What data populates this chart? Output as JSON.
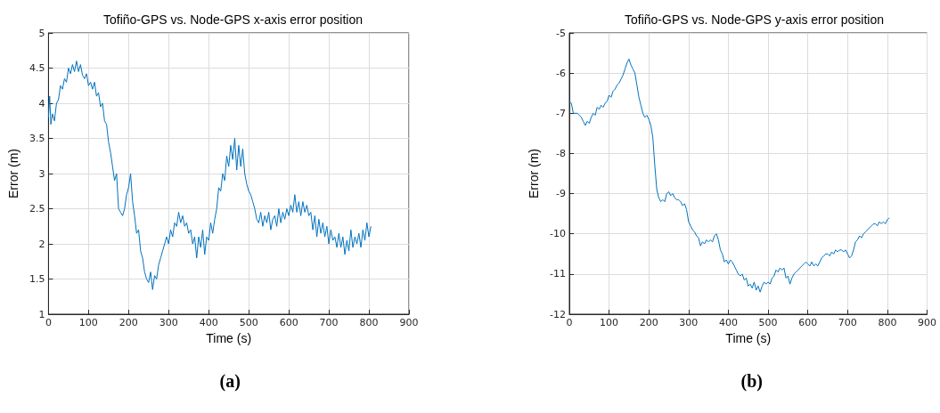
{
  "chart_data": [
    {
      "type": "line",
      "title": "Tofiño-GPS vs. Node-GPS x-axis error position",
      "xlabel": "Time (s)",
      "ylabel": "Error (m)",
      "annotations": [
        "(a)"
      ],
      "xlim": [
        0,
        900
      ],
      "xticks": [
        0,
        100,
        200,
        300,
        400,
        500,
        600,
        700,
        800,
        900
      ],
      "ylim": [
        1,
        5
      ],
      "yticks": [
        1,
        1.5,
        2,
        2.5,
        3,
        3.5,
        4,
        4.5,
        5
      ],
      "grid": true,
      "marker": "none",
      "line_style": "solid",
      "series": [
        {
          "color": "#0072bd",
          "x": [
            0,
            3,
            6,
            10,
            15,
            20,
            25,
            30,
            35,
            40,
            45,
            50,
            55,
            60,
            65,
            70,
            75,
            80,
            85,
            90,
            95,
            100,
            105,
            110,
            115,
            120,
            125,
            130,
            135,
            140,
            145,
            150,
            155,
            160,
            165,
            170,
            175,
            180,
            185,
            190,
            195,
            200,
            205,
            210,
            215,
            220,
            225,
            230,
            235,
            240,
            245,
            250,
            255,
            260,
            265,
            270,
            275,
            280,
            285,
            290,
            295,
            300,
            305,
            310,
            315,
            320,
            325,
            330,
            335,
            340,
            345,
            350,
            355,
            360,
            365,
            370,
            375,
            380,
            385,
            390,
            395,
            400,
            405,
            410,
            415,
            420,
            425,
            430,
            435,
            440,
            445,
            450,
            455,
            460,
            465,
            470,
            475,
            480,
            485,
            490,
            495,
            500,
            505,
            510,
            515,
            520,
            525,
            530,
            535,
            540,
            545,
            550,
            555,
            560,
            565,
            570,
            575,
            580,
            585,
            590,
            595,
            600,
            605,
            610,
            615,
            620,
            625,
            630,
            635,
            640,
            645,
            650,
            655,
            660,
            665,
            670,
            675,
            680,
            685,
            690,
            695,
            700,
            705,
            710,
            715,
            720,
            725,
            730,
            735,
            740,
            745,
            750,
            755,
            760,
            765,
            770,
            775,
            780,
            785,
            790,
            795,
            800,
            805
          ],
          "values": [
            3.8,
            4.1,
            3.7,
            3.85,
            3.75,
            4.0,
            4.05,
            4.25,
            4.2,
            4.35,
            4.3,
            4.5,
            4.42,
            4.55,
            4.45,
            4.6,
            4.45,
            4.55,
            4.4,
            4.35,
            4.42,
            4.25,
            4.3,
            4.2,
            4.3,
            4.1,
            4.15,
            3.95,
            4.0,
            3.75,
            3.7,
            3.45,
            3.3,
            3.1,
            2.9,
            3.0,
            2.5,
            2.45,
            2.4,
            2.5,
            2.7,
            2.8,
            3.0,
            2.6,
            2.4,
            2.15,
            2.2,
            1.9,
            1.8,
            1.6,
            1.5,
            1.45,
            1.6,
            1.35,
            1.55,
            1.5,
            1.7,
            1.8,
            1.9,
            2.0,
            2.1,
            2.0,
            2.2,
            2.1,
            2.3,
            2.25,
            2.45,
            2.3,
            2.4,
            2.25,
            2.3,
            2.15,
            2.2,
            2.0,
            2.1,
            1.8,
            2.1,
            1.95,
            2.2,
            1.85,
            2.1,
            2.05,
            2.3,
            2.15,
            2.35,
            2.5,
            2.8,
            2.75,
            3.0,
            2.9,
            3.25,
            3.1,
            3.4,
            3.2,
            3.5,
            3.05,
            3.4,
            3.1,
            3.35,
            3.0,
            2.85,
            2.75,
            2.7,
            2.6,
            2.5,
            2.35,
            2.3,
            2.45,
            2.25,
            2.4,
            2.3,
            2.45,
            2.2,
            2.35,
            2.4,
            2.25,
            2.5,
            2.3,
            2.45,
            2.35,
            2.5,
            2.4,
            2.55,
            2.45,
            2.7,
            2.45,
            2.6,
            2.4,
            2.6,
            2.45,
            2.55,
            2.4,
            2.45,
            2.2,
            2.4,
            2.1,
            2.35,
            2.15,
            2.3,
            2.1,
            2.25,
            2.0,
            2.2,
            2.05,
            2.1,
            1.95,
            2.15,
            1.95,
            2.1,
            1.85,
            2.05,
            1.9,
            2.2,
            1.95,
            2.1,
            2.0,
            2.15,
            1.95,
            2.2,
            2.05,
            2.3,
            2.1,
            2.25
          ]
        }
      ]
    },
    {
      "type": "line",
      "title": "Tofiño-GPS vs. Node-GPS y-axis error position",
      "xlabel": "Time (s)",
      "ylabel": "Error (m)",
      "annotations": [
        "(b)"
      ],
      "xlim": [
        0,
        900
      ],
      "xticks": [
        0,
        100,
        200,
        300,
        400,
        500,
        600,
        700,
        800,
        900
      ],
      "ylim": [
        -12,
        -5
      ],
      "yticks": [
        -12,
        -11,
        -10,
        -9,
        -8,
        -7,
        -6,
        -5
      ],
      "grid": true,
      "marker": "none",
      "line_style": "solid",
      "series": [
        {
          "color": "#0072bd",
          "x": [
            0,
            5,
            10,
            20,
            25,
            30,
            35,
            40,
            45,
            50,
            55,
            60,
            65,
            70,
            75,
            80,
            85,
            90,
            95,
            100,
            105,
            110,
            115,
            120,
            125,
            130,
            135,
            140,
            145,
            150,
            155,
            160,
            165,
            170,
            175,
            180,
            185,
            190,
            195,
            200,
            205,
            210,
            215,
            220,
            225,
            230,
            235,
            240,
            245,
            250,
            255,
            260,
            265,
            270,
            275,
            280,
            285,
            290,
            295,
            300,
            305,
            310,
            315,
            320,
            325,
            330,
            335,
            340,
            345,
            350,
            355,
            360,
            365,
            370,
            375,
            380,
            385,
            390,
            395,
            400,
            405,
            410,
            415,
            420,
            425,
            430,
            435,
            440,
            445,
            450,
            455,
            460,
            465,
            470,
            475,
            480,
            485,
            490,
            495,
            500,
            505,
            510,
            515,
            520,
            525,
            530,
            535,
            540,
            545,
            550,
            555,
            560,
            565,
            570,
            575,
            580,
            585,
            590,
            595,
            600,
            605,
            610,
            615,
            620,
            625,
            630,
            635,
            640,
            645,
            650,
            655,
            660,
            665,
            670,
            675,
            680,
            685,
            690,
            695,
            700,
            705,
            710,
            715,
            720,
            725,
            730,
            735,
            740,
            745,
            750,
            755,
            760,
            765,
            770,
            775,
            780,
            785,
            790,
            795,
            800,
            805
          ],
          "values": [
            -6.7,
            -6.75,
            -7.0,
            -7.0,
            -7.05,
            -7.1,
            -7.2,
            -7.3,
            -7.2,
            -7.25,
            -7.1,
            -7.0,
            -7.05,
            -6.85,
            -6.9,
            -6.8,
            -6.85,
            -6.75,
            -6.7,
            -6.55,
            -6.6,
            -6.45,
            -6.4,
            -6.3,
            -6.25,
            -6.15,
            -6.05,
            -5.9,
            -5.75,
            -5.65,
            -5.8,
            -5.9,
            -6.0,
            -6.3,
            -6.6,
            -6.8,
            -7.0,
            -7.1,
            -7.05,
            -7.15,
            -7.3,
            -7.6,
            -8.3,
            -8.9,
            -9.1,
            -9.2,
            -9.15,
            -9.2,
            -9.0,
            -8.95,
            -9.05,
            -9.0,
            -9.1,
            -9.15,
            -9.15,
            -9.2,
            -9.3,
            -9.25,
            -9.4,
            -9.7,
            -9.8,
            -9.9,
            -9.95,
            -10.05,
            -10.1,
            -10.3,
            -10.2,
            -10.25,
            -10.15,
            -10.2,
            -10.15,
            -10.2,
            -10.05,
            -10.0,
            -10.15,
            -10.4,
            -10.5,
            -10.7,
            -10.65,
            -10.75,
            -10.65,
            -10.7,
            -10.8,
            -10.9,
            -11.0,
            -11.05,
            -11.0,
            -11.15,
            -11.1,
            -11.3,
            -11.25,
            -11.35,
            -11.2,
            -11.4,
            -11.3,
            -11.45,
            -11.3,
            -11.2,
            -11.25,
            -11.2,
            -11.25,
            -11.1,
            -11.05,
            -10.9,
            -10.95,
            -10.85,
            -10.9,
            -10.85,
            -11.1,
            -11.05,
            -11.25,
            -11.1,
            -11.0,
            -10.95,
            -10.9,
            -10.85,
            -10.8,
            -10.75,
            -10.7,
            -10.75,
            -10.8,
            -10.7,
            -10.8,
            -10.75,
            -10.8,
            -10.7,
            -10.6,
            -10.55,
            -10.5,
            -10.5,
            -10.55,
            -10.45,
            -10.5,
            -10.4,
            -10.45,
            -10.4,
            -10.4,
            -10.45,
            -10.4,
            -10.5,
            -10.6,
            -10.55,
            -10.4,
            -10.2,
            -10.15,
            -10.05,
            -10.1,
            -10.0,
            -9.95,
            -9.9,
            -9.85,
            -9.8,
            -9.75,
            -9.75,
            -9.8,
            -9.7,
            -9.75,
            -9.7,
            -9.75,
            -9.65,
            -9.6
          ]
        }
      ]
    }
  ]
}
